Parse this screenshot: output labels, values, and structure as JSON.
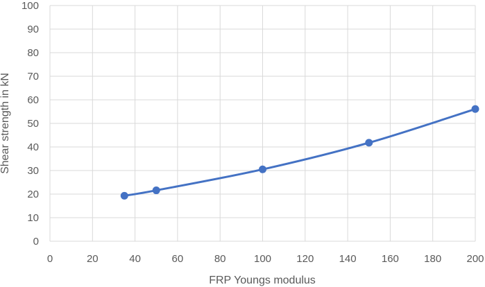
{
  "chart_data": {
    "type": "line",
    "title": "",
    "xlabel": "FRP Youngs modulus",
    "ylabel": "Shear strength in kN",
    "xlim": [
      0,
      200
    ],
    "ylim": [
      0,
      100
    ],
    "xticks": [
      0,
      20,
      40,
      60,
      80,
      100,
      120,
      140,
      160,
      180,
      200
    ],
    "yticks": [
      0,
      10,
      20,
      30,
      40,
      50,
      60,
      70,
      80,
      90,
      100
    ],
    "grid": true,
    "legend": "none",
    "smoothed": true,
    "series": [
      {
        "color": "#4472c4",
        "marker": "circle",
        "x": [
          35,
          50,
          100,
          150,
          200
        ],
        "y": [
          19.3,
          21.6,
          30.5,
          41.8,
          56.1
        ]
      }
    ]
  }
}
